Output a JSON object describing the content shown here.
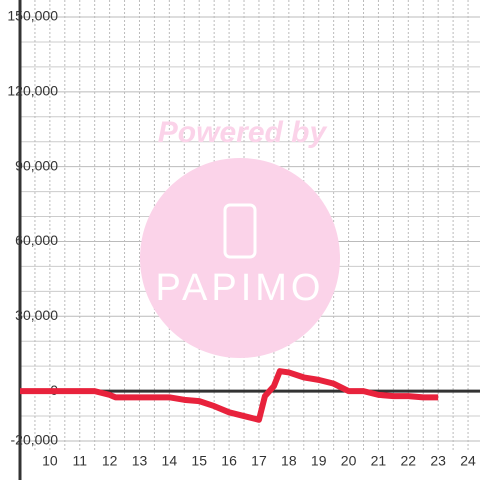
{
  "chart_data": {
    "type": "line",
    "watermark": {
      "title": "Powered by",
      "brand": "PAPIMO"
    },
    "x": [
      9,
      11.5,
      12,
      12.2,
      14,
      14.5,
      15,
      15.5,
      16,
      16.5,
      17,
      17.2,
      17.5,
      17.7,
      18,
      18.5,
      19,
      19.5,
      20,
      20.5,
      21,
      21.5,
      22,
      22.5,
      23
    ],
    "series": [
      {
        "color": "#e8223c",
        "values": [
          0,
          0,
          -1500,
          -2500,
          -2500,
          -3500,
          -4000,
          -6000,
          -8500,
          -10000,
          -11500,
          -2000,
          2000,
          8000,
          7500,
          5500,
          4500,
          3000,
          0,
          0,
          -1500,
          -2000,
          -2000,
          -2500,
          -2500
        ]
      }
    ],
    "xlim": [
      9,
      24.4
    ],
    "xticks": [
      10,
      11,
      12,
      13,
      14,
      15,
      16,
      17,
      18,
      19,
      20,
      21,
      22,
      23,
      24
    ],
    "xminorticks": [
      9.5,
      10.5,
      11.5,
      12.5,
      13.5,
      14.5,
      15.5,
      16.5,
      17.5,
      18.5,
      19.5,
      20.5,
      21.5,
      22.5,
      23.5
    ],
    "ylim": [
      -20000,
      150000
    ],
    "yticks": [
      {
        "value": 150000,
        "label": "150,000"
      },
      {
        "value": 120000,
        "label": "120,000"
      },
      {
        "value": 90000,
        "label": "90,000"
      },
      {
        "value": 60000,
        "label": "60,000"
      },
      {
        "value": 30000,
        "label": "30,000"
      },
      0,
      {
        "value": -20000,
        "label": "-20,000"
      }
    ],
    "yminorticks": [
      140000,
      130000,
      110000,
      100000,
      80000,
      70000,
      50000,
      40000,
      20000,
      10000,
      -10000
    ],
    "grid": true
  }
}
